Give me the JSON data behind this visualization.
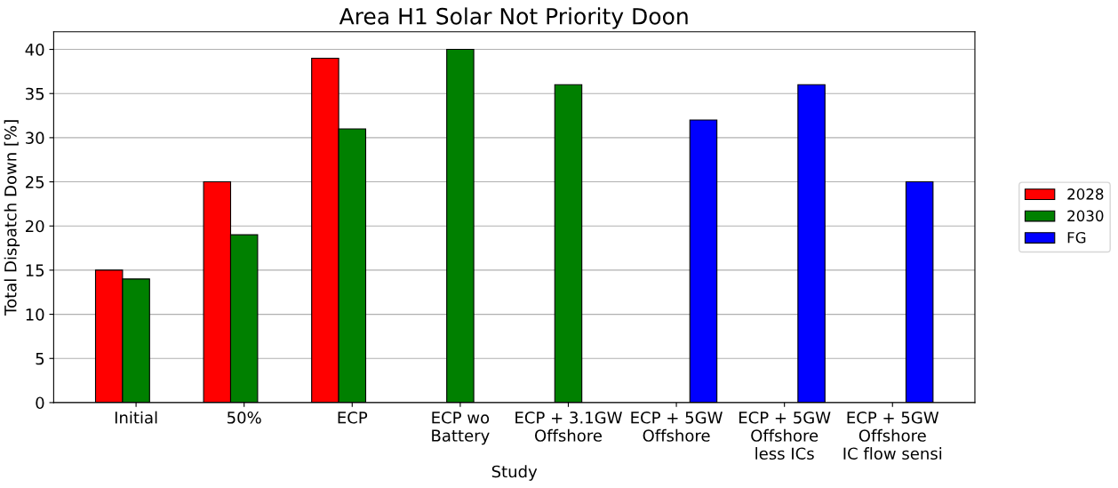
{
  "chart_data": {
    "type": "bar",
    "title": "Area H1 Solar Not Priority Doon",
    "xlabel": "Study",
    "ylabel": "Total Dispatch Down [%]",
    "categories": [
      "Initial",
      "50%",
      "ECP",
      "ECP wo\nBattery",
      "ECP + 3.1GW\nOffshore",
      "ECP + 5GW\nOffshore",
      "ECP + 5GW\nOffshore\nless ICs",
      "ECP + 5GW\nOffshore\nIC flow sensi"
    ],
    "series": [
      {
        "name": "2028",
        "color": "#ff0000",
        "values": [
          15,
          25,
          39,
          null,
          null,
          null,
          null,
          null
        ]
      },
      {
        "name": "2030",
        "color": "#008000",
        "values": [
          14,
          19,
          31,
          40,
          36,
          null,
          null,
          null
        ]
      },
      {
        "name": "FG",
        "color": "#0000ff",
        "values": [
          null,
          null,
          null,
          null,
          null,
          32,
          36,
          25
        ]
      }
    ],
    "ylim": [
      0,
      42
    ],
    "yticks": [
      0,
      5,
      10,
      15,
      20,
      25,
      30,
      35,
      40
    ],
    "grid": "y",
    "legend": "right"
  }
}
